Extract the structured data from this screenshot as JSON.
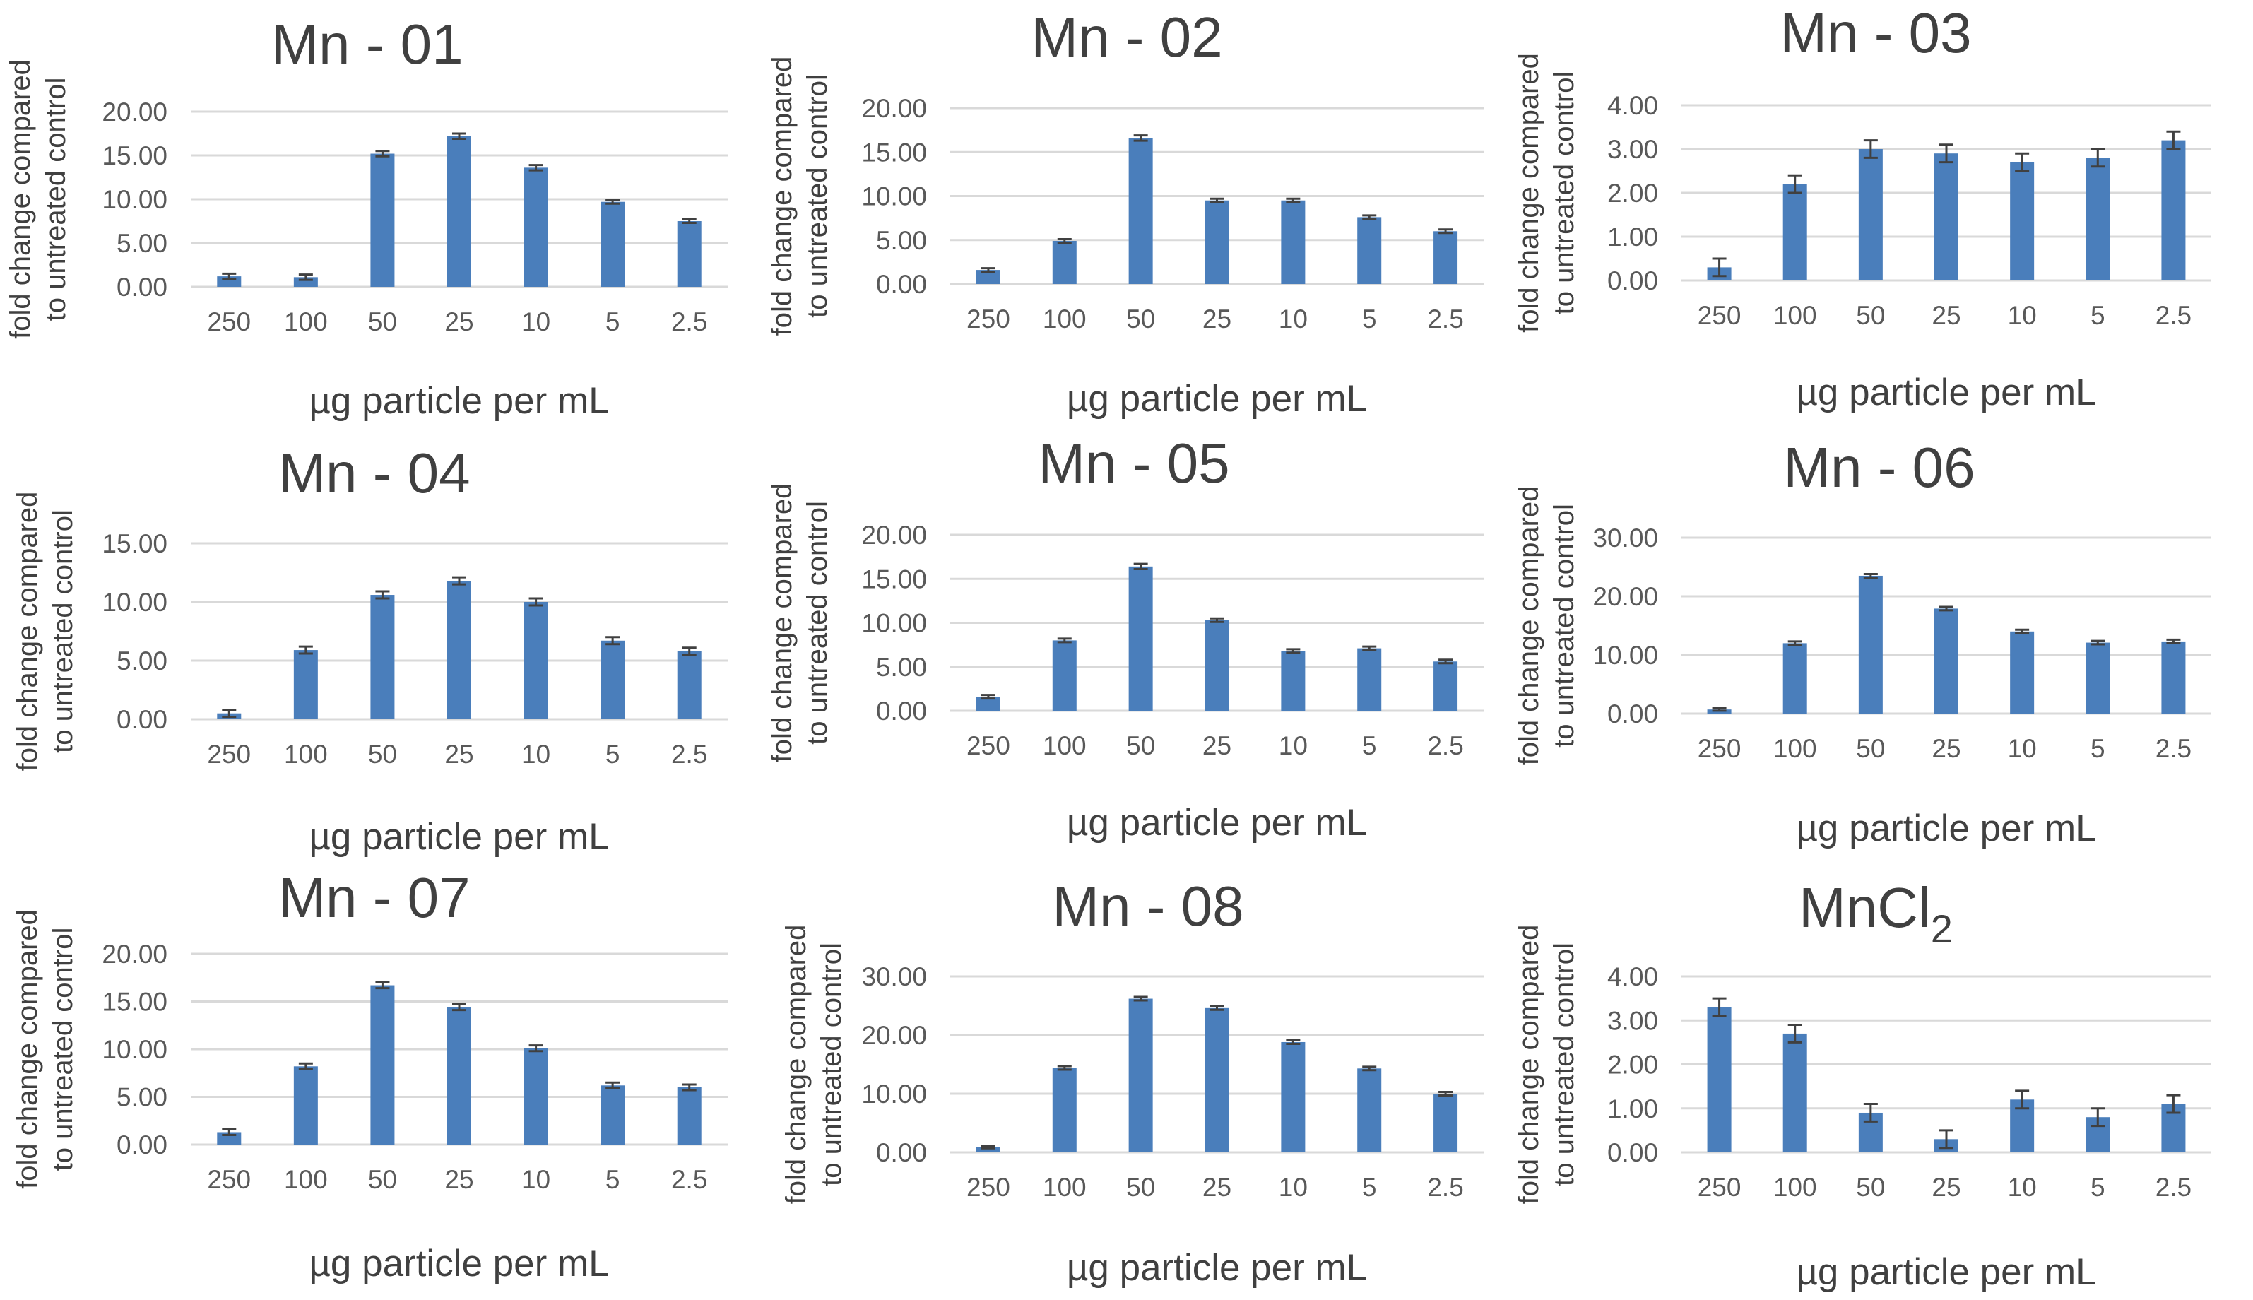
{
  "figure": {
    "description_free": true
  },
  "common": {
    "xlabel": "µg particle per mL",
    "ylabel_line1": "fold change compared",
    "ylabel_line2": "to untreated control",
    "categories": [
      "250",
      "100",
      "50",
      "25",
      "10",
      "5",
      "2.5"
    ],
    "bar_color": "#4a7ebb"
  },
  "chart_data": [
    {
      "type": "bar",
      "title": "Mn - 01",
      "xlabel": "µg particle per mL",
      "ylabel": "fold change compared to untreated control",
      "categories": [
        "250",
        "100",
        "50",
        "25",
        "10",
        "5",
        "2.5"
      ],
      "values": [
        1.2,
        1.1,
        15.2,
        17.2,
        13.6,
        9.7,
        7.5
      ],
      "errors": [
        0.3,
        0.3,
        0.3,
        0.3,
        0.3,
        0.2,
        0.2
      ],
      "ylim": [
        0,
        20
      ],
      "yticks": [
        "0.00",
        "5.00",
        "10.00",
        "15.00",
        "20.00"
      ]
    },
    {
      "type": "bar",
      "title": "Mn - 02",
      "xlabel": "µg particle per mL",
      "ylabel": "fold change compared to untreated control",
      "categories": [
        "250",
        "100",
        "50",
        "25",
        "10",
        "5",
        "2.5"
      ],
      "values": [
        1.6,
        4.9,
        16.6,
        9.5,
        9.5,
        7.6,
        6.0
      ],
      "errors": [
        0.2,
        0.2,
        0.3,
        0.2,
        0.2,
        0.2,
        0.2
      ],
      "ylim": [
        0,
        20
      ],
      "yticks": [
        "0.00",
        "5.00",
        "10.00",
        "15.00",
        "20.00"
      ]
    },
    {
      "type": "bar",
      "title": "Mn - 03",
      "xlabel": "µg particle per mL",
      "ylabel": "fold change compared to untreated control",
      "categories": [
        "250",
        "100",
        "50",
        "25",
        "10",
        "5",
        "2.5"
      ],
      "values": [
        0.3,
        2.2,
        3.0,
        2.9,
        2.7,
        2.8,
        3.2
      ],
      "errors": [
        0.2,
        0.2,
        0.2,
        0.2,
        0.2,
        0.2,
        0.2
      ],
      "ylim": [
        0,
        4
      ],
      "yticks": [
        "0.00",
        "1.00",
        "2.00",
        "3.00",
        "4.00"
      ]
    },
    {
      "type": "bar",
      "title": "Mn - 04",
      "xlabel": "µg particle per mL",
      "ylabel": "fold change compared to untreated control",
      "categories": [
        "250",
        "100",
        "50",
        "25",
        "10",
        "5",
        "2.5"
      ],
      "values": [
        0.5,
        5.9,
        10.6,
        11.8,
        10.0,
        6.7,
        5.8
      ],
      "errors": [
        0.3,
        0.3,
        0.3,
        0.3,
        0.3,
        0.3,
        0.3
      ],
      "ylim": [
        0,
        15
      ],
      "yticks": [
        "0.00",
        "5.00",
        "10.00",
        "15.00"
      ]
    },
    {
      "type": "bar",
      "title": "Mn - 05",
      "xlabel": "µg particle per mL",
      "ylabel": "fold change compared to untreated control",
      "categories": [
        "250",
        "100",
        "50",
        "25",
        "10",
        "5",
        "2.5"
      ],
      "values": [
        1.6,
        8.0,
        16.4,
        10.3,
        6.8,
        7.1,
        5.6
      ],
      "errors": [
        0.2,
        0.2,
        0.3,
        0.2,
        0.2,
        0.2,
        0.2
      ],
      "ylim": [
        0,
        20
      ],
      "yticks": [
        "0.00",
        "5.00",
        "10.00",
        "15.00",
        "20.00"
      ]
    },
    {
      "type": "bar",
      "title": "Mn - 06",
      "xlabel": "µg particle per mL",
      "ylabel": "fold change compared to untreated control",
      "categories": [
        "250",
        "100",
        "50",
        "25",
        "10",
        "5",
        "2.5"
      ],
      "values": [
        0.7,
        12.0,
        23.5,
        17.9,
        14.0,
        12.1,
        12.3
      ],
      "errors": [
        0.2,
        0.3,
        0.3,
        0.3,
        0.3,
        0.3,
        0.3
      ],
      "ylim": [
        0,
        30
      ],
      "yticks": [
        "0.00",
        "10.00",
        "20.00",
        "30.00"
      ]
    },
    {
      "type": "bar",
      "title": "Mn - 07",
      "xlabel": "µg particle per mL",
      "ylabel": "fold change compared to untreated control",
      "categories": [
        "250",
        "100",
        "50",
        "25",
        "10",
        "5",
        "2.5"
      ],
      "values": [
        1.3,
        8.2,
        16.7,
        14.4,
        10.1,
        6.2,
        6.0
      ],
      "errors": [
        0.3,
        0.3,
        0.3,
        0.3,
        0.3,
        0.3,
        0.3
      ],
      "ylim": [
        0,
        20
      ],
      "yticks": [
        "0.00",
        "5.00",
        "10.00",
        "15.00",
        "20.00"
      ]
    },
    {
      "type": "bar",
      "title": "Mn - 08",
      "xlabel": "µg particle per mL",
      "ylabel": "fold change compared to untreated control",
      "categories": [
        "250",
        "100",
        "50",
        "25",
        "10",
        "5",
        "2.5"
      ],
      "values": [
        0.9,
        14.4,
        26.2,
        24.6,
        18.8,
        14.3,
        10.0
      ],
      "errors": [
        0.2,
        0.3,
        0.3,
        0.3,
        0.3,
        0.3,
        0.3
      ],
      "ylim": [
        0,
        30
      ],
      "yticks": [
        "0.00",
        "10.00",
        "20.00",
        "30.00"
      ]
    },
    {
      "type": "bar",
      "title": "MnCl",
      "title_subscript": "2",
      "xlabel": "µg particle per mL",
      "ylabel": "fold change compared to untreated control",
      "categories": [
        "250",
        "100",
        "50",
        "25",
        "10",
        "5",
        "2.5"
      ],
      "values": [
        3.3,
        2.7,
        0.9,
        0.3,
        1.2,
        0.8,
        1.1
      ],
      "errors": [
        0.2,
        0.2,
        0.2,
        0.2,
        0.2,
        0.2,
        0.2
      ],
      "ylim": [
        0,
        4
      ],
      "yticks": [
        "0.00",
        "1.00",
        "2.00",
        "3.00",
        "4.00"
      ]
    }
  ]
}
